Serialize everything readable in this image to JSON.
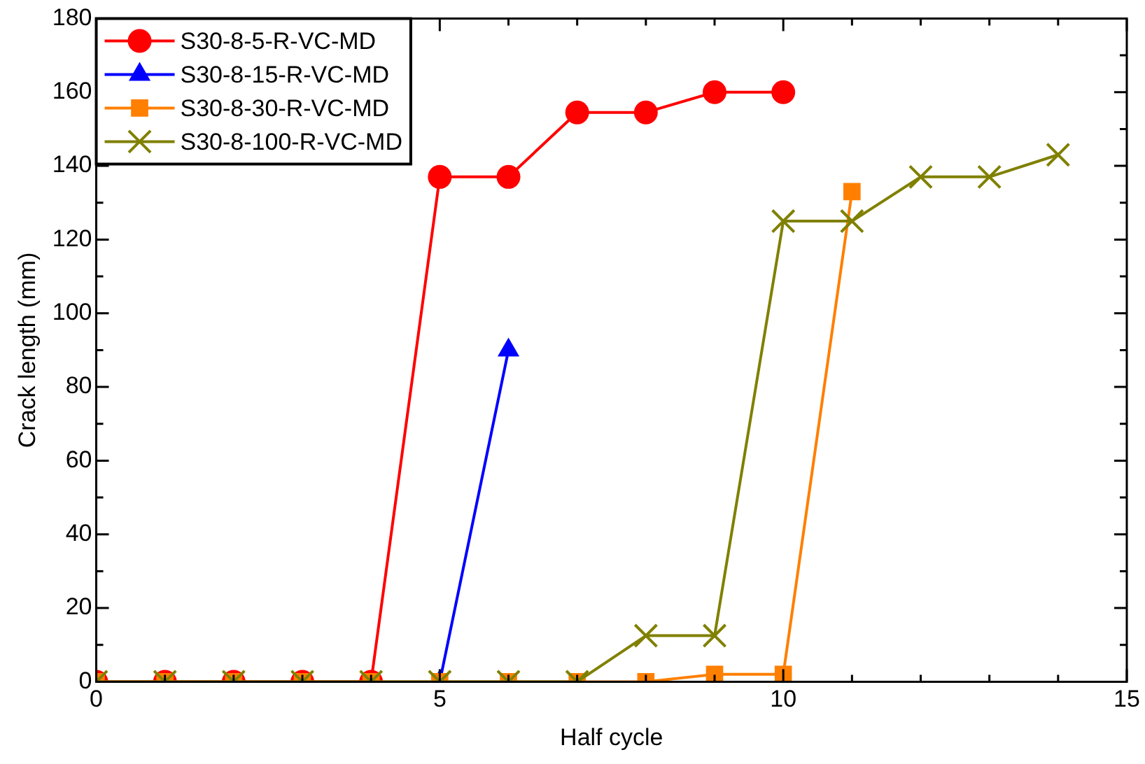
{
  "chart_data": {
    "type": "line",
    "xlabel": "Half cycle",
    "ylabel": "Crack length (mm)",
    "xlim": [
      0,
      15
    ],
    "xticks": [
      0,
      {
        "value": 1,
        "label": null
      },
      {
        "value": 2,
        "label": null
      },
      {
        "value": 3,
        "label": null
      },
      {
        "value": 4,
        "label": null
      },
      5,
      {
        "value": 6,
        "label": null
      },
      {
        "value": 7,
        "label": null
      },
      {
        "value": 8,
        "label": null
      },
      {
        "value": 9,
        "label": null
      },
      10,
      {
        "value": 11,
        "label": null
      },
      {
        "value": 12,
        "label": null
      },
      {
        "value": 13,
        "label": null
      },
      {
        "value": 14,
        "label": null
      },
      15
    ],
    "ylim": [
      0,
      180
    ],
    "yticks": [
      0,
      {
        "value": 10,
        "label": null
      },
      20,
      {
        "value": 30,
        "label": null
      },
      40,
      {
        "value": 50,
        "label": null
      },
      60,
      {
        "value": 70,
        "label": null
      },
      80,
      {
        "value": 90,
        "label": null
      },
      100,
      {
        "value": 110,
        "label": null
      },
      120,
      {
        "value": 130,
        "label": null
      },
      140,
      {
        "value": 150,
        "label": null
      },
      160,
      {
        "value": 170,
        "label": null
      },
      180
    ],
    "grid": false,
    "legend": "top left",
    "line_style": "solid",
    "series": [
      {
        "name": "S30-8-5-R-VC-MD",
        "color": "#ff0000",
        "marker": "circle",
        "x": [
          0,
          1,
          2,
          3,
          4,
          5,
          6,
          7,
          8,
          9,
          10
        ],
        "values": [
          0,
          0,
          0,
          0,
          0,
          137,
          137,
          154.5,
          154.5,
          160,
          160
        ]
      },
      {
        "name": "S30-8-15-R-VC-MD",
        "color": "#0000ff",
        "marker": "triangle",
        "x": [
          5,
          6
        ],
        "values": [
          0,
          90
        ]
      },
      {
        "name": "S30-8-30-R-VC-MD",
        "color": "#ff7f00",
        "marker": "square",
        "x": [
          0,
          1,
          2,
          3,
          4,
          5,
          6,
          7,
          8,
          9,
          10,
          11
        ],
        "values": [
          0,
          0,
          0,
          0,
          0,
          0,
          0,
          0,
          0,
          2,
          2,
          133
        ]
      },
      {
        "name": "S30-8-100-R-VC-MD",
        "color": "#808000",
        "marker": "cross",
        "x": [
          0,
          1,
          2,
          3,
          4,
          5,
          6,
          7,
          8,
          9,
          10,
          11,
          12,
          13,
          14
        ],
        "values": [
          0,
          0,
          0,
          0,
          0,
          0,
          0,
          0,
          12.5,
          12.5,
          125,
          125,
          137,
          137,
          143
        ]
      }
    ]
  }
}
